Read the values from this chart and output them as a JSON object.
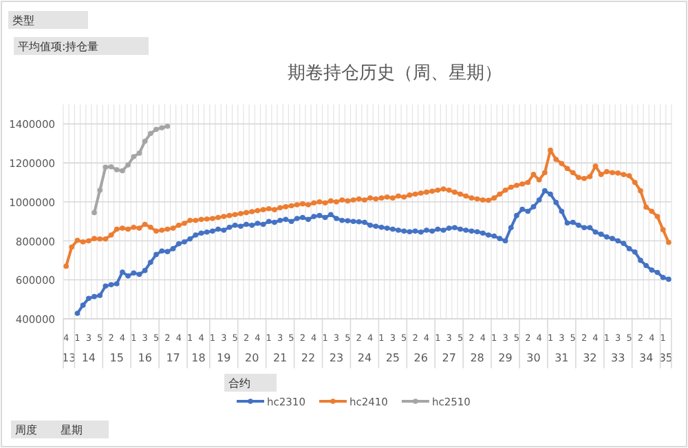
{
  "chart_data": {
    "type": "line",
    "title": "期卷持仓历史（周、星期）",
    "annotations": [
      "类型",
      "平均值项:持仓量",
      "合约",
      "周度",
      "星期",
      "13",
      "14",
      "15",
      "16",
      "17",
      "18",
      "19",
      "20",
      "21",
      "22",
      "23",
      "24",
      "25",
      "26",
      "27",
      "28",
      "29",
      "30",
      "31",
      "32",
      "33",
      "34",
      "35"
    ],
    "categories": [
      "4",
      null,
      "1",
      null,
      "3",
      null,
      "5",
      null,
      "2",
      null,
      "4",
      null,
      "1",
      null,
      "3",
      null,
      "5",
      null,
      "2",
      null,
      "4",
      null,
      "1",
      null,
      "4",
      null,
      "1",
      null,
      "3",
      null,
      "5",
      null,
      "2",
      null,
      "4",
      null,
      "1",
      null,
      "3",
      null,
      "5",
      null,
      "2",
      null,
      "4",
      null,
      "1",
      null,
      "3",
      null,
      "5",
      null,
      "2",
      null,
      "4",
      null,
      "1",
      null,
      "3",
      null,
      "5",
      null,
      "2",
      null,
      "4",
      null,
      "1",
      null,
      "3",
      null,
      "5",
      null,
      "2",
      null,
      "4",
      null,
      "1",
      null,
      "3",
      null,
      "5",
      null,
      "2",
      null,
      "4",
      null,
      "1",
      null,
      "3",
      null,
      "5",
      null,
      "2",
      null,
      "4",
      null,
      "1",
      null,
      "3",
      null,
      "5",
      null,
      "2",
      null,
      "4",
      null,
      "1",
      null
    ],
    "ylim": [
      400000,
      1500000
    ],
    "yticks": [
      400000,
      600000,
      800000,
      1000000,
      1200000,
      1400000
    ],
    "grid": true,
    "legend": "bottom",
    "marker": "circle",
    "line_style": "solid",
    "series": [
      {
        "name": "hc2310",
        "color": "#4472c4",
        "values": [
          null,
          null,
          428000,
          470000,
          505000,
          514000,
          520000,
          568000,
          575000,
          580000,
          640000,
          620000,
          635000,
          628000,
          648000,
          690000,
          730000,
          748000,
          745000,
          760000,
          785000,
          795000,
          810000,
          830000,
          840000,
          845000,
          850000,
          860000,
          855000,
          870000,
          880000,
          875000,
          885000,
          880000,
          890000,
          885000,
          900000,
          895000,
          905000,
          910000,
          900000,
          915000,
          920000,
          910000,
          925000,
          930000,
          920000,
          935000,
          915000,
          905000,
          903000,
          900000,
          898000,
          895000,
          880000,
          875000,
          870000,
          865000,
          860000,
          855000,
          850000,
          847000,
          850000,
          845000,
          855000,
          850000,
          860000,
          855000,
          865000,
          868000,
          860000,
          855000,
          850000,
          847000,
          840000,
          830000,
          825000,
          812000,
          800000,
          868000,
          930000,
          962000,
          952000,
          975000,
          1010000,
          1057000,
          1040000,
          997000,
          952000,
          892000,
          895000,
          880000,
          868000,
          868000,
          845000,
          834000,
          820000,
          812000,
          800000,
          787000,
          760000,
          743000,
          700000,
          673000,
          650000,
          638000,
          612000,
          603000
        ]
      },
      {
        "name": "hc2410",
        "color": "#ed7d31",
        "values": [
          670000,
          768000,
          803000,
          795000,
          800000,
          812000,
          810000,
          810000,
          830000,
          860000,
          865000,
          860000,
          870000,
          865000,
          885000,
          870000,
          850000,
          855000,
          860000,
          865000,
          880000,
          890000,
          905000,
          905000,
          910000,
          912000,
          915000,
          920000,
          925000,
          930000,
          935000,
          940000,
          945000,
          950000,
          955000,
          960000,
          965000,
          960000,
          970000,
          975000,
          980000,
          985000,
          990000,
          985000,
          995000,
          1000000,
          995000,
          1005000,
          1000000,
          1010000,
          1005000,
          1010000,
          1015000,
          1010000,
          1020000,
          1015000,
          1020000,
          1025000,
          1020000,
          1030000,
          1025000,
          1035000,
          1040000,
          1045000,
          1050000,
          1055000,
          1060000,
          1066000,
          1060000,
          1050000,
          1040000,
          1030000,
          1020000,
          1015000,
          1010000,
          1008000,
          1020000,
          1040000,
          1060000,
          1075000,
          1085000,
          1092000,
          1100000,
          1141000,
          1113000,
          1150000,
          1265000,
          1218000,
          1197000,
          1171000,
          1150000,
          1125000,
          1120000,
          1130000,
          1183000,
          1141000,
          1155000,
          1150000,
          1148000,
          1140000,
          1134000,
          1100000,
          1057000,
          973000,
          952000,
          925000,
          857000,
          792000
        ]
      },
      {
        "name": "hc2510",
        "color": "#a5a5a5",
        "values": [
          null,
          null,
          null,
          null,
          null,
          945000,
          1060000,
          1178000,
          1180000,
          1165000,
          1160000,
          1190000,
          1232000,
          1250000,
          1311000,
          1351000,
          1372000,
          1380000,
          1388000,
          null,
          null,
          null,
          null,
          null,
          null,
          null,
          null,
          null,
          null,
          null,
          null,
          null,
          null,
          null,
          null,
          null,
          null,
          null,
          null,
          null,
          null,
          null,
          null,
          null,
          null,
          null,
          null,
          null,
          null,
          null,
          null,
          null,
          null,
          null,
          null,
          null,
          null,
          null,
          null,
          null,
          null,
          null,
          null,
          null,
          null,
          null,
          null,
          null,
          null,
          null,
          null,
          null,
          null,
          null,
          null,
          null,
          null,
          null,
          null,
          null,
          null,
          null,
          null,
          null,
          null,
          null,
          null,
          null,
          null,
          null,
          null,
          null,
          null,
          null,
          null,
          null,
          null,
          null,
          null,
          null,
          null,
          null,
          null,
          null,
          null,
          null,
          null,
          null
        ]
      }
    ]
  }
}
